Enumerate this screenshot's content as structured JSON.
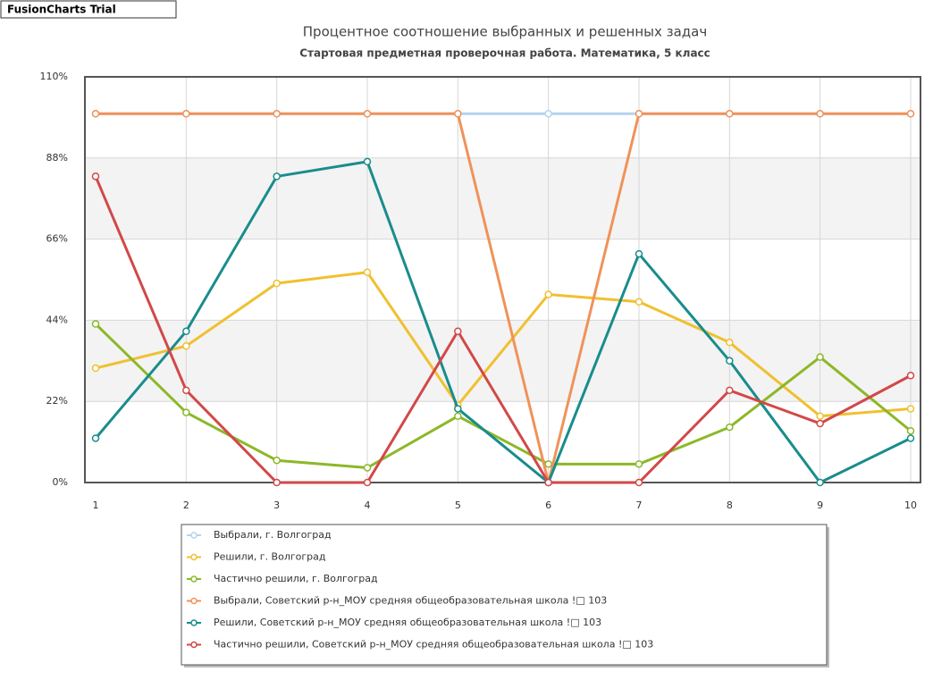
{
  "watermark": "FusionCharts Trial",
  "chart_data": {
    "type": "line",
    "title": "Процентное соотношение выбранных и решенных задач",
    "subtitle": "Стартовая предметная проверочная работа. Математика, 5 класс",
    "categories": [
      "1",
      "2",
      "3",
      "4",
      "5",
      "6",
      "7",
      "8",
      "9",
      "10"
    ],
    "ylim": [
      0,
      110
    ],
    "yticks": [
      {
        "value": 0,
        "label": "0%"
      },
      {
        "value": 22,
        "label": "22%"
      },
      {
        "value": 44,
        "label": "44%"
      },
      {
        "value": 66,
        "label": "66%"
      },
      {
        "value": 88,
        "label": "88%"
      },
      {
        "value": 110,
        "label": "110%"
      }
    ],
    "grid": true,
    "legend": "bottom",
    "series": [
      {
        "name": "Выбрали, г. Волгоград",
        "color": "#b4d4ee",
        "values": [
          100,
          100,
          100,
          100,
          100,
          100,
          100,
          100,
          100,
          100
        ]
      },
      {
        "name": "Решили, г. Волгоград",
        "color": "#f0c030",
        "values": [
          31,
          37,
          54,
          57,
          21,
          51,
          49,
          38,
          18,
          20
        ]
      },
      {
        "name": "Частично решили, г. Волгоград",
        "color": "#8cb828",
        "values": [
          43,
          19,
          6,
          4,
          18,
          5,
          5,
          15,
          34,
          14
        ]
      },
      {
        "name": "Выбрали, Советский р-н_МОУ средняя общеобразовательная школа !□ 103",
        "color": "#f0925a",
        "values": [
          100,
          100,
          100,
          100,
          100,
          0,
          100,
          100,
          100,
          100
        ]
      },
      {
        "name": "Решили, Советский р-н_МОУ средняя общеобразовательная школа !□ 103",
        "color": "#1a8c8c",
        "values": [
          12,
          41,
          83,
          87,
          20,
          0,
          62,
          33,
          0,
          12
        ]
      },
      {
        "name": "Частично решили, Советский р-н_МОУ средняя общеобразовательная школа !□ 103",
        "color": "#d24848",
        "values": [
          83,
          25,
          0,
          0,
          41,
          0,
          0,
          25,
          16,
          29
        ]
      }
    ]
  }
}
